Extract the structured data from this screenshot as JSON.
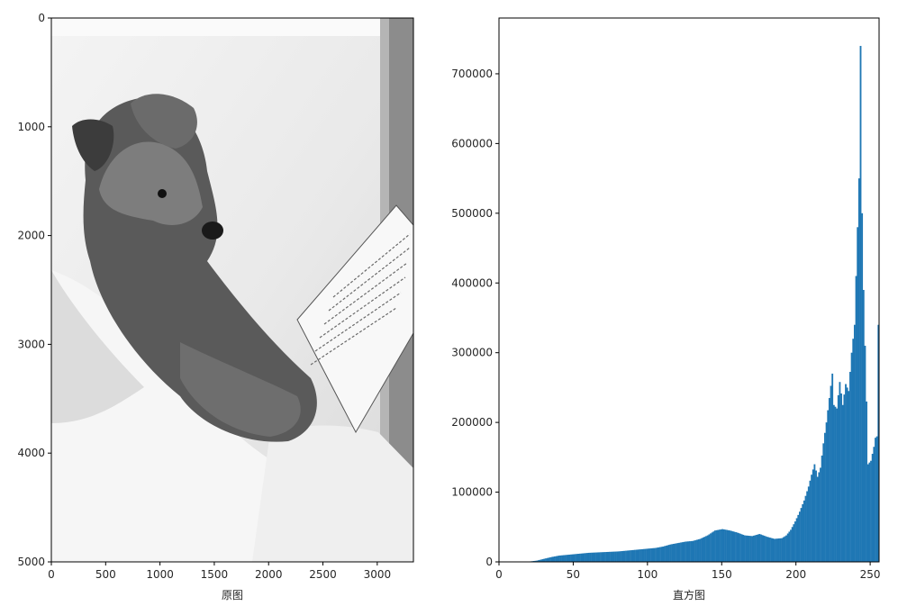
{
  "chart_data": [
    {
      "type": "image",
      "xlabel": "原图",
      "ylabel": "",
      "xlim": [
        0,
        3333
      ],
      "ylim": [
        5000,
        0
      ],
      "xticks": [
        "0",
        "500",
        "1000",
        "1500",
        "2000",
        "2500",
        "3000"
      ],
      "yticks": [
        "0",
        "1000",
        "2000",
        "3000",
        "4000",
        "5000"
      ],
      "image": {
        "subject": "grayscale photo of a small terrier dog looking at an open book",
        "colormap": "gray"
      }
    },
    {
      "type": "bar",
      "xlabel": "直方图",
      "ylabel": "",
      "xlim": [
        0,
        256
      ],
      "ylim": [
        0,
        780000
      ],
      "xticks": [
        "0",
        "50",
        "100",
        "150",
        "200",
        "250"
      ],
      "yticks": [
        "0",
        "100000",
        "200000",
        "300000",
        "400000",
        "500000",
        "600000",
        "700000"
      ],
      "bar_color": "#1f77b4",
      "bin_width": 1,
      "bins": [
        [
          0,
          0
        ],
        [
          5,
          0
        ],
        [
          10,
          0
        ],
        [
          15,
          0
        ],
        [
          20,
          500
        ],
        [
          25,
          1800
        ],
        [
          30,
          4500
        ],
        [
          35,
          7000
        ],
        [
          40,
          9000
        ],
        [
          45,
          10000
        ],
        [
          50,
          11000
        ],
        [
          55,
          12000
        ],
        [
          60,
          13000
        ],
        [
          65,
          13500
        ],
        [
          70,
          14000
        ],
        [
          75,
          14500
        ],
        [
          80,
          15000
        ],
        [
          85,
          16000
        ],
        [
          90,
          17000
        ],
        [
          95,
          18000
        ],
        [
          100,
          19000
        ],
        [
          105,
          20000
        ],
        [
          110,
          22000
        ],
        [
          115,
          25000
        ],
        [
          120,
          27000
        ],
        [
          125,
          29000
        ],
        [
          130,
          30000
        ],
        [
          135,
          33000
        ],
        [
          140,
          38000
        ],
        [
          145,
          45000
        ],
        [
          150,
          47000
        ],
        [
          155,
          45000
        ],
        [
          160,
          42000
        ],
        [
          165,
          38000
        ],
        [
          170,
          37000
        ],
        [
          175,
          40000
        ],
        [
          180,
          36000
        ],
        [
          185,
          33000
        ],
        [
          190,
          34000
        ],
        [
          193,
          38000
        ],
        [
          196,
          46000
        ],
        [
          199,
          58000
        ],
        [
          202,
          72000
        ],
        [
          205,
          88000
        ],
        [
          208,
          108000
        ],
        [
          210,
          125000
        ],
        [
          212,
          140000
        ],
        [
          214,
          122000
        ],
        [
          216,
          135000
        ],
        [
          218,
          170000
        ],
        [
          220,
          200000
        ],
        [
          222,
          235000
        ],
        [
          224,
          270000
        ],
        [
          225,
          225000
        ],
        [
          227,
          220000
        ],
        [
          229,
          258000
        ],
        [
          231,
          225000
        ],
        [
          233,
          255000
        ],
        [
          235,
          245000
        ],
        [
          237,
          300000
        ],
        [
          239,
          340000
        ],
        [
          241,
          480000
        ],
        [
          242,
          550000
        ],
        [
          243,
          740000
        ],
        [
          244,
          500000
        ],
        [
          245,
          390000
        ],
        [
          246,
          310000
        ],
        [
          247,
          230000
        ],
        [
          248,
          140000
        ],
        [
          250,
          145000
        ],
        [
          252,
          165000
        ],
        [
          253,
          178000
        ],
        [
          254,
          180000
        ],
        [
          255,
          340000
        ]
      ]
    }
  ]
}
